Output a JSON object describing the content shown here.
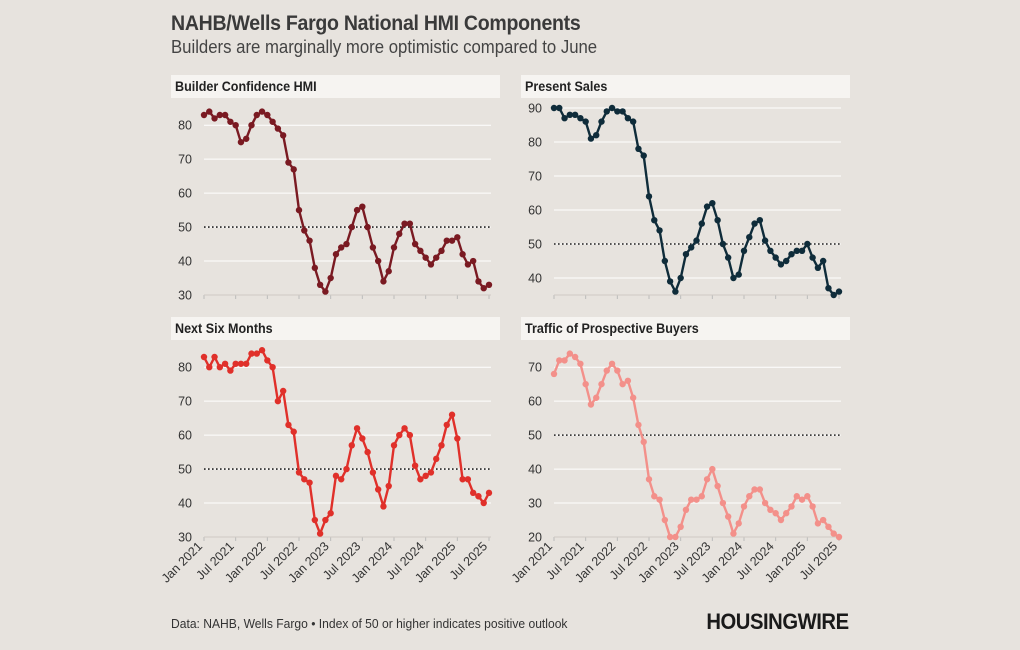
{
  "title": "NAHB/Wells Fargo National HMI Components",
  "subtitle": "Builders are marginally more optimistic compared to June",
  "footer": "Data: NAHB, Wells Fargo • Index of 50 or higher indicates positive outlook",
  "logo": "HOUSINGWIRE",
  "chart_data": [
    {
      "type": "line",
      "title": "Builder Confidence HMI",
      "color": "#7a1a22",
      "x_ticks": [
        "Jan 2021",
        "Jul 2021",
        "Jan 2022",
        "Jul 2022",
        "Jan 2023",
        "Jul 2023",
        "Jan 2024",
        "Jul 2024",
        "Jan 2025",
        "Jul 2025"
      ],
      "y_ticks": [
        30,
        40,
        50,
        60,
        70,
        80
      ],
      "ylim": [
        30,
        83
      ],
      "reference_line": 50,
      "show_x_labels": false,
      "series": [
        {
          "values": [
            83,
            84,
            82,
            83,
            83,
            81,
            80,
            75,
            76,
            80,
            83,
            84,
            83,
            81,
            79,
            77,
            69,
            67,
            55,
            49,
            46,
            38,
            33,
            31,
            35,
            42,
            44,
            45,
            50,
            55,
            56,
            50,
            44,
            40,
            34,
            37,
            44,
            48,
            51,
            51,
            45,
            43,
            41,
            39,
            41,
            43,
            46,
            46,
            47,
            42,
            39,
            40,
            34,
            32,
            33
          ]
        }
      ]
    },
    {
      "type": "line",
      "title": "Present Sales",
      "color": "#0f2c3a",
      "x_ticks": [
        "Jan 2021",
        "Jul 2021",
        "Jan 2022",
        "Jul 2022",
        "Jan 2023",
        "Jul 2023",
        "Jan 2024",
        "Jul 2024",
        "Jan 2025",
        "Jul 2025"
      ],
      "y_ticks": [
        40,
        50,
        60,
        70,
        80,
        90
      ],
      "ylim": [
        35,
        90
      ],
      "reference_line": 50,
      "show_x_labels": false,
      "series": [
        {
          "values": [
            90,
            90,
            87,
            88,
            88,
            87,
            86,
            81,
            82,
            86,
            89,
            90,
            89,
            89,
            87,
            86,
            78,
            76,
            64,
            57,
            54,
            45,
            39,
            36,
            40,
            47,
            49,
            51,
            56,
            61,
            62,
            57,
            50,
            46,
            40,
            41,
            48,
            52,
            56,
            57,
            51,
            48,
            46,
            44,
            45,
            47,
            48,
            48,
            50,
            46,
            43,
            45,
            37,
            35,
            36
          ]
        }
      ]
    },
    {
      "type": "line",
      "title": "Next Six Months",
      "color": "#e0302a",
      "x_ticks": [
        "Jan 2021",
        "Jul 2021",
        "Jan 2022",
        "Jul 2022",
        "Jan 2023",
        "Jul 2023",
        "Jan 2024",
        "Jul 2024",
        "Jan 2025",
        "Jul 2025"
      ],
      "y_ticks": [
        30,
        40,
        50,
        60,
        70,
        80
      ],
      "ylim": [
        30,
        83
      ],
      "reference_line": 50,
      "show_x_labels": true,
      "series": [
        {
          "values": [
            83,
            80,
            83,
            80,
            81,
            79,
            81,
            81,
            81,
            84,
            84,
            85,
            82,
            80,
            70,
            73,
            63,
            61,
            49,
            47,
            46,
            35,
            31,
            35,
            37,
            48,
            47,
            50,
            57,
            62,
            59,
            55,
            49,
            44,
            39,
            45,
            57,
            60,
            62,
            60,
            51,
            47,
            48,
            49,
            53,
            57,
            63,
            66,
            59,
            47,
            47,
            43,
            42,
            40,
            43
          ]
        }
      ]
    },
    {
      "type": "line",
      "title": "Traffic of Prospective Buyers",
      "color": "#f3908a",
      "x_ticks": [
        "Jan 2021",
        "Jul 2021",
        "Jan 2022",
        "Jul 2022",
        "Jan 2023",
        "Jul 2023",
        "Jan 2024",
        "Jul 2024",
        "Jan 2025",
        "Jul 2025"
      ],
      "y_ticks": [
        20,
        30,
        40,
        50,
        60,
        70
      ],
      "ylim": [
        20,
        73
      ],
      "reference_line": 50,
      "show_x_labels": true,
      "series": [
        {
          "values": [
            68,
            72,
            72,
            74,
            73,
            71,
            65,
            59,
            61,
            65,
            69,
            71,
            69,
            65,
            66,
            61,
            53,
            48,
            37,
            32,
            31,
            25,
            20,
            20,
            23,
            28,
            31,
            31,
            32,
            37,
            40,
            35,
            30,
            26,
            21,
            24,
            29,
            32,
            34,
            34,
            30,
            28,
            27,
            25,
            27,
            29,
            32,
            31,
            32,
            29,
            24,
            25,
            23,
            21,
            20
          ]
        }
      ]
    }
  ]
}
